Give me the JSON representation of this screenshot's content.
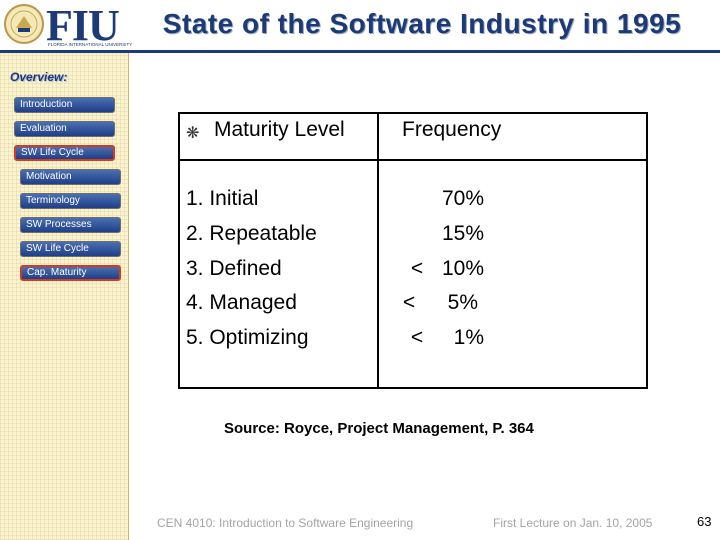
{
  "header": {
    "title": "State of the Software Industry in 1995",
    "logo_text": "FIU",
    "logo_subtext": "FLORIDA INTERNATIONAL UNIVERSITY"
  },
  "sidebar": {
    "heading": "Overview:",
    "items": [
      {
        "label": "Introduction",
        "active": false
      },
      {
        "label": "Evaluation",
        "active": false
      },
      {
        "label": "SW Life Cycle",
        "active": true
      },
      {
        "label": "Motivation",
        "active": false
      },
      {
        "label": "Terminology",
        "active": false
      },
      {
        "label": "SW Processes",
        "active": false
      },
      {
        "label": "SW Life Cycle",
        "active": false
      },
      {
        "label": "Cap. Maturity",
        "active": true
      }
    ]
  },
  "table": {
    "bullet": "❋",
    "header_level": "Maturity Level",
    "header_frequency": "Frequency",
    "rows": [
      {
        "level": "1. Initial",
        "cmp": "",
        "pct": "70%"
      },
      {
        "level": "2. Repeatable",
        "cmp": "",
        "pct": "15%"
      },
      {
        "level": "3. Defined",
        "cmp": "<",
        "pct": "10%"
      },
      {
        "level": "4. Managed",
        "cmp": "<",
        "pct": "5%"
      },
      {
        "level": "5. Optimizing",
        "cmp": "<",
        "pct": "1%"
      }
    ]
  },
  "source": "Source: Royce, Project Management, P. 364",
  "footer": {
    "course": "CEN 4010: Introduction to Software Engineering",
    "lecture": "First Lecture on Jan. 10, 2005",
    "page": "63"
  },
  "colors": {
    "title": "#1c3a75",
    "nav_fill": "#2a4d96",
    "nav_active_border": "#d23a22",
    "sidebar_bg": "#fbf3cf"
  }
}
